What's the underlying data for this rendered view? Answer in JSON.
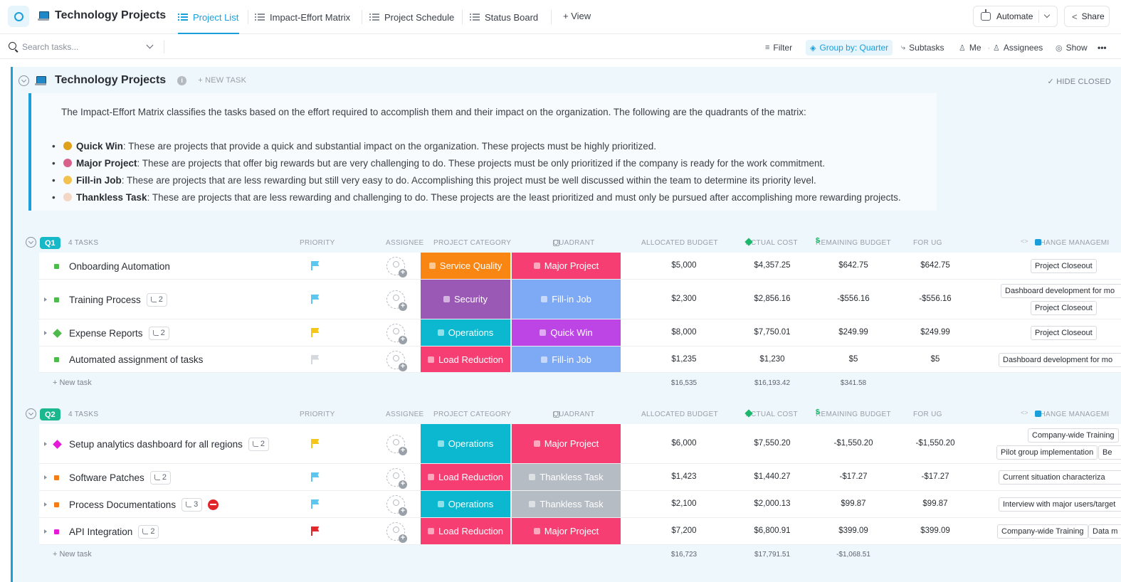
{
  "header": {
    "title": "Technology Projects",
    "tabs": [
      {
        "label": "Project List",
        "active": true
      },
      {
        "label": "Impact-Effort Matrix",
        "active": false
      },
      {
        "label": "Project Schedule",
        "active": false
      },
      {
        "label": "Status Board",
        "active": false
      }
    ],
    "add_view": "+ View",
    "automate": "Automate",
    "share": "Share"
  },
  "toolbar": {
    "search_placeholder": "Search tasks...",
    "filter": "Filter",
    "group_by": "Group by: Quarter",
    "subtasks": "Subtasks",
    "me": "Me",
    "assignees": "Assignees",
    "show": "Show",
    "more": "•••"
  },
  "list": {
    "title": "Technology Projects",
    "new_task": "+ NEW TASK",
    "hide_closed": "✓ HIDE CLOSED",
    "description": {
      "intro": "The Impact-Effort Matrix classifies the tasks based on the effort required to accomplish them and their impact on the organization. The following are the quadrants of the matrix:",
      "items": [
        {
          "term": "Quick Win",
          "text": ": These are projects that provide a quick and substantial impact on the organization. These projects must be highly prioritized.",
          "icon_color": "#e0a21a"
        },
        {
          "term": "Major Project",
          "text": ": These are projects that offer big rewards but are very challenging to do. These projects must be only prioritized if the company is ready for the work commitment.",
          "icon_color": "#d9608a"
        },
        {
          "term": "Fill-in Job",
          "text": ": These are projects that are less rewarding but still very easy to do. Accomplishing this project must be well discussed within the team to determine its priority level.",
          "icon_color": "#f2c14e"
        },
        {
          "term": "Thankless Task",
          "text": ": These are projects that are less rewarding and challenging to do. These projects are the least prioritized and must only be pursued after accomplishing more rewarding projects.",
          "icon_color": "#f3d6c4"
        }
      ]
    }
  },
  "columns": {
    "priority": "PRIORITY",
    "assignee": "ASSIGNEE",
    "project_category": "PROJECT CATEGORY",
    "quadrant": "QUADRANT",
    "allocated_budget": "ALLOCATED BUDGET",
    "actual_cost": "ACTUAL COST",
    "remaining_budget": "REMAINING BUDGET",
    "for_ug": "FOR UG",
    "change_management": "CHANGE MANAGEMI"
  },
  "colors": {
    "accent": "#1a9fdb",
    "service_quality": "#f98512",
    "security": "#9b59b6",
    "operations": "#0bb8cf",
    "load_reduction": "#f63e72",
    "major_project": "#f63e72",
    "fill_in_job": "#7ea9f5",
    "quick_win": "#bd45e6",
    "thankless_task": "#b6bcc4"
  },
  "groups": [
    {
      "label": "Q1",
      "badge_color": "#17b8c7",
      "task_count": "4 TASKS",
      "new_task": "+ New task",
      "totals": {
        "allocated": "$16,535",
        "actual": "$16,193.42",
        "remaining": "$341.58"
      },
      "tasks": [
        {
          "name": "Onboarding Automation",
          "subtasks": "",
          "status_color": "#4dbb4b",
          "status_shape": "square",
          "expandable": false,
          "blocked": false,
          "priority_color": "#5cc6ef",
          "category": "Service Quality",
          "category_color": "#f98512",
          "quadrant": "Major Project",
          "quadrant_color": "#f63e72",
          "allocated": "$5,000",
          "actual": "$4,357.25",
          "remaining": "$642.75",
          "for_ug": "$642.75",
          "change_tags": [
            "Project Closeout"
          ]
        },
        {
          "name": "Training Process",
          "subtasks": "2",
          "status_color": "#4dbb4b",
          "status_shape": "square",
          "expandable": true,
          "blocked": false,
          "priority_color": "#5cc6ef",
          "category": "Security",
          "category_color": "#9b59b6",
          "quadrant": "Fill-in Job",
          "quadrant_color": "#7ea9f5",
          "allocated": "$2,300",
          "actual": "$2,856.16",
          "remaining": "-$556.16",
          "for_ug": "-$556.16",
          "change_tags": [
            "Dashboard development for mo",
            "Project Closeout"
          ]
        },
        {
          "name": "Expense Reports",
          "subtasks": "2",
          "status_color": "#4dbb4b",
          "status_shape": "diamond",
          "expandable": true,
          "blocked": false,
          "priority_color": "#f5c518",
          "category": "Operations",
          "category_color": "#0bb8cf",
          "quadrant": "Quick Win",
          "quadrant_color": "#bd45e6",
          "allocated": "$8,000",
          "actual": "$7,750.01",
          "remaining": "$249.99",
          "for_ug": "$249.99",
          "change_tags": [
            "Project Closeout"
          ]
        },
        {
          "name": "Automated assignment of tasks",
          "subtasks": "",
          "status_color": "#4dbb4b",
          "status_shape": "square",
          "expandable": false,
          "blocked": false,
          "priority_color": "#d5d8dc",
          "category": "Load Reduction",
          "category_color": "#f63e72",
          "quadrant": "Fill-in Job",
          "quadrant_color": "#7ea9f5",
          "allocated": "$1,235",
          "actual": "$1,230",
          "remaining": "$5",
          "for_ug": "$5",
          "change_tags": [
            "Dashboard development for mo"
          ]
        }
      ]
    },
    {
      "label": "Q2",
      "badge_color": "#1bb88f",
      "task_count": "4 TASKS",
      "new_task": "+ New task",
      "totals": {
        "allocated": "$16,723",
        "actual": "$17,791.51",
        "remaining": "-$1,068.51"
      },
      "tasks": [
        {
          "name": "Setup analytics dashboard for all regions",
          "subtasks": "2",
          "status_color": "#e619d8",
          "status_shape": "diamond",
          "expandable": true,
          "blocked": false,
          "priority_color": "#f5c518",
          "category": "Operations",
          "category_color": "#0bb8cf",
          "quadrant": "Major Project",
          "quadrant_color": "#f63e72",
          "allocated": "$6,000",
          "actual": "$7,550.20",
          "remaining": "-$1,550.20",
          "for_ug": "-$1,550.20",
          "change_tags": [
            "Company-wide Training",
            "Pilot group implementation",
            "Be"
          ]
        },
        {
          "name": "Software Patches",
          "subtasks": "2",
          "status_color": "#f57b14",
          "status_shape": "square",
          "expandable": true,
          "blocked": false,
          "priority_color": "#5cc6ef",
          "category": "Load Reduction",
          "category_color": "#f63e72",
          "quadrant": "Thankless Task",
          "quadrant_color": "#b6bcc4",
          "allocated": "$1,423",
          "actual": "$1,440.27",
          "remaining": "-$17.27",
          "for_ug": "-$17.27",
          "change_tags": [
            "Current situation characteriza"
          ]
        },
        {
          "name": "Process Documentations",
          "subtasks": "3",
          "status_color": "#f57b14",
          "status_shape": "square",
          "expandable": true,
          "blocked": true,
          "priority_color": "#5cc6ef",
          "category": "Operations",
          "category_color": "#0bb8cf",
          "quadrant": "Thankless Task",
          "quadrant_color": "#b6bcc4",
          "allocated": "$2,100",
          "actual": "$2,000.13",
          "remaining": "$99.87",
          "for_ug": "$99.87",
          "change_tags": [
            "Interview with major users/target"
          ]
        },
        {
          "name": "API Integration",
          "subtasks": "2",
          "status_color": "#e619d8",
          "status_shape": "square",
          "expandable": true,
          "blocked": false,
          "priority_color": "#e3272c",
          "category": "Load Reduction",
          "category_color": "#f63e72",
          "quadrant": "Major Project",
          "quadrant_color": "#f63e72",
          "allocated": "$7,200",
          "actual": "$6,800.91",
          "remaining": "$399.09",
          "for_ug": "$399.09",
          "change_tags": [
            "Company-wide Training",
            "Data m"
          ]
        }
      ]
    }
  ]
}
